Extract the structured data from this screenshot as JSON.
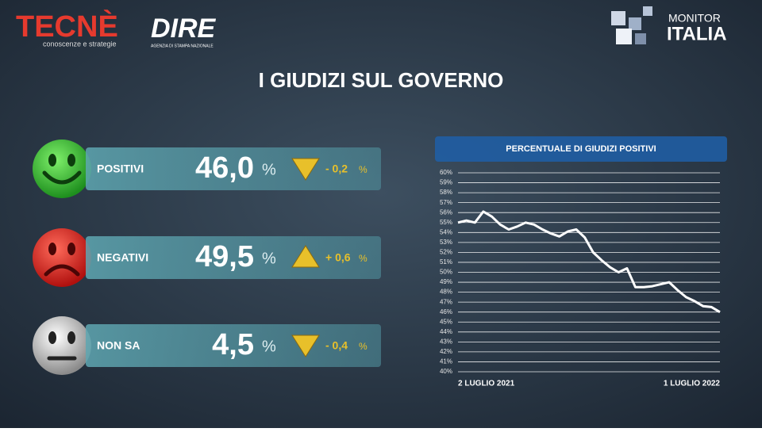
{
  "header": {
    "brand_left": "TECNÈ",
    "brand_left_tagline": "conoscenze e strategie",
    "brand_middle": "DIRE",
    "brand_middle_tagline": "AGENZIA DI STAMPA NAZIONALE",
    "brand_right_top": "MONITOR",
    "brand_right_bottom": "ITALIA"
  },
  "title": "I GIUDIZI SUL GOVERNO",
  "stats": [
    {
      "label": "POSITIVI",
      "value": "46,0",
      "unit": "%",
      "change": "- 0,2",
      "change_unit": "%",
      "trend": "down"
    },
    {
      "label": "NEGATIVI",
      "value": "49,5",
      "unit": "%",
      "change": "+ 0,6",
      "change_unit": "%",
      "trend": "up"
    },
    {
      "label": "NON SA",
      "value": "4,5",
      "unit": "%",
      "change": "- 0,4",
      "change_unit": "%",
      "trend": "down"
    }
  ],
  "chart_data": {
    "type": "line",
    "title": "PERCENTUALE DI GIUDIZI POSITIVI",
    "categories": [
      "2 LUGLIO 2021",
      null,
      null,
      null,
      null,
      null,
      null,
      null,
      null,
      null,
      null,
      null,
      null,
      null,
      null,
      null,
      null,
      null,
      null,
      null,
      null,
      null,
      null,
      null,
      null,
      null,
      null,
      null,
      null,
      null,
      null,
      "1 LUGLIO 2022"
    ],
    "values": [
      55.0,
      55.2,
      55.0,
      56.1,
      55.6,
      54.8,
      54.3,
      54.6,
      55.0,
      54.8,
      54.3,
      53.9,
      53.6,
      54.1,
      54.3,
      53.5,
      52.0,
      51.2,
      50.5,
      50.0,
      50.4,
      48.5,
      48.5,
      48.6,
      48.8,
      49.0,
      48.2,
      47.5,
      47.1,
      46.6,
      46.5,
      46.0
    ],
    "color": "#ffffff",
    "ylim": [
      40,
      60
    ],
    "yticks": [
      {
        "value": 40,
        "label": "40%"
      },
      {
        "value": 41,
        "label": "41%"
      },
      {
        "value": 42,
        "label": "42%"
      },
      {
        "value": 43,
        "label": "43%"
      },
      {
        "value": 44,
        "label": "44%"
      },
      {
        "value": 45,
        "label": "45%"
      },
      {
        "value": 46,
        "label": "46%"
      },
      {
        "value": 47,
        "label": "47%"
      },
      {
        "value": 48,
        "label": "48%"
      },
      {
        "value": 49,
        "label": "49%"
      },
      {
        "value": 50,
        "label": "50%"
      },
      {
        "value": 51,
        "label": "51%"
      },
      {
        "value": 52,
        "label": "52%"
      },
      {
        "value": 53,
        "label": "53%"
      },
      {
        "value": 54,
        "label": "54%"
      },
      {
        "value": 55,
        "label": "55%"
      },
      {
        "value": 56,
        "label": "56%"
      },
      {
        "value": 57,
        "label": "57%"
      },
      {
        "value": 58,
        "label": "58%"
      },
      {
        "value": 59,
        "label": "59%"
      },
      {
        "value": 60,
        "label": "60%"
      }
    ],
    "grid": true
  }
}
